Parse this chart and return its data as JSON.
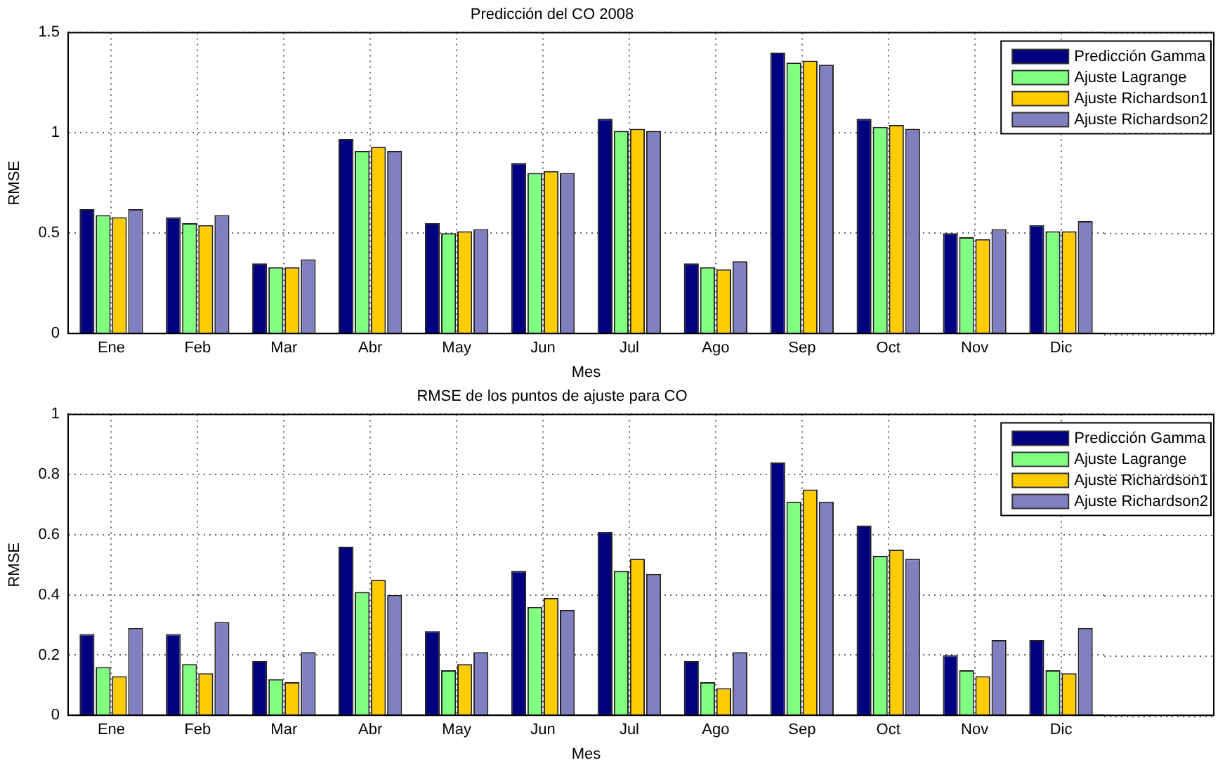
{
  "chart_data": [
    {
      "type": "bar",
      "title": "Predicción del CO 2008",
      "xlabel": "Mes",
      "ylabel": "RMSE",
      "categories": [
        "Ene",
        "Feb",
        "Mar",
        "Abr",
        "May",
        "Jun",
        "Jul",
        "Ago",
        "Sep",
        "Oct",
        "Nov",
        "Dic"
      ],
      "ylim": [
        0,
        1.5
      ],
      "yticks": [
        0,
        0.5,
        1,
        1.5
      ],
      "grid": true,
      "legend": "top right",
      "series": [
        {
          "name": "Predicción Gamma",
          "color": "#000080",
          "values": [
            0.62,
            0.58,
            0.35,
            0.97,
            0.55,
            0.85,
            1.07,
            0.35,
            1.4,
            1.07,
            0.5,
            0.54
          ]
        },
        {
          "name": "Ajuste Lagrange",
          "color": "#80ff80",
          "values": [
            0.59,
            0.55,
            0.33,
            0.91,
            0.5,
            0.8,
            1.01,
            0.33,
            1.35,
            1.03,
            0.48,
            0.51
          ]
        },
        {
          "name": "Ajuste Richardson1",
          "color": "#ffcc00",
          "values": [
            0.58,
            0.54,
            0.33,
            0.93,
            0.51,
            0.81,
            1.02,
            0.32,
            1.36,
            1.04,
            0.47,
            0.51
          ]
        },
        {
          "name": "Ajuste Richardson2",
          "color": "#8080c0",
          "values": [
            0.62,
            0.59,
            0.37,
            0.91,
            0.52,
            0.8,
            1.01,
            0.36,
            1.34,
            1.02,
            0.52,
            0.56
          ]
        }
      ]
    },
    {
      "type": "bar",
      "title": "RMSE de los puntos de ajuste para CO",
      "xlabel": "Mes",
      "ylabel": "RMSE",
      "categories": [
        "Ene",
        "Feb",
        "Mar",
        "Abr",
        "May",
        "Jun",
        "Jul",
        "Ago",
        "Sep",
        "Oct",
        "Nov",
        "Dic"
      ],
      "ylim": [
        0,
        1
      ],
      "yticks": [
        0,
        0.2,
        0.4,
        0.6,
        0.8,
        1
      ],
      "grid": true,
      "legend": "top right",
      "series": [
        {
          "name": "Predicción Gamma",
          "color": "#000080",
          "values": [
            0.27,
            0.27,
            0.18,
            0.56,
            0.28,
            0.48,
            0.61,
            0.18,
            0.84,
            0.63,
            0.2,
            0.25
          ]
        },
        {
          "name": "Ajuste Lagrange",
          "color": "#80ff80",
          "values": [
            0.16,
            0.17,
            0.12,
            0.41,
            0.15,
            0.36,
            0.48,
            0.11,
            0.71,
            0.53,
            0.15,
            0.15
          ]
        },
        {
          "name": "Ajuste Richardson1",
          "color": "#ffcc00",
          "values": [
            0.13,
            0.14,
            0.11,
            0.45,
            0.17,
            0.39,
            0.52,
            0.09,
            0.75,
            0.55,
            0.13,
            0.14
          ]
        },
        {
          "name": "Ajuste Richardson2",
          "color": "#8080c0",
          "values": [
            0.29,
            0.31,
            0.21,
            0.4,
            0.21,
            0.35,
            0.47,
            0.21,
            0.71,
            0.52,
            0.25,
            0.29
          ]
        }
      ]
    }
  ]
}
